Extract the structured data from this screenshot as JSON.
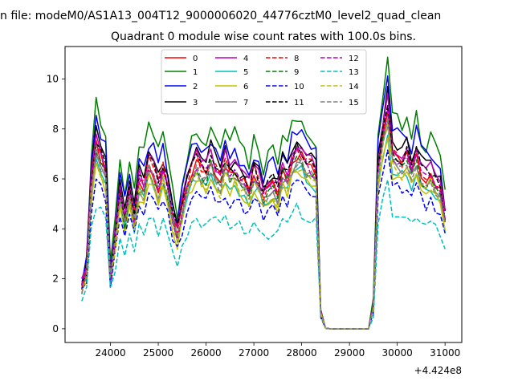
{
  "chart_data": {
    "type": "line",
    "suptitle": "n file: modeM0/AS1A13_004T12_9000006020_44776cztM0_level2_quad_clean",
    "title": "Quadrant 0 module wise count rates with 100.0s bins.",
    "xlabel": "",
    "ylabel": "",
    "x_offset_label": "+4.424e8",
    "x_offset": 442400000,
    "xlim": [
      23050,
      31350
    ],
    "ylim": [
      -0.55,
      11.3
    ],
    "xticks": [
      24000,
      25000,
      26000,
      27000,
      28000,
      29000,
      30000,
      31000
    ],
    "yticks": [
      0,
      2,
      4,
      6,
      8,
      10
    ],
    "legend_loc": "upper center",
    "x": [
      23400,
      23500,
      23600,
      23700,
      23800,
      23900,
      24000,
      24100,
      24200,
      24300,
      24400,
      24500,
      24600,
      24700,
      24800,
      24900,
      25000,
      25100,
      25200,
      25300,
      25400,
      25500,
      25600,
      25700,
      25800,
      25900,
      26000,
      26100,
      26200,
      26300,
      26400,
      26500,
      26600,
      26700,
      26800,
      26900,
      27000,
      27100,
      27200,
      27300,
      27400,
      27500,
      27600,
      27700,
      27800,
      27900,
      28000,
      28100,
      28200,
      28300,
      28400,
      28500,
      28600,
      28700,
      28800,
      28900,
      29000,
      29100,
      29200,
      29300,
      29400,
      29500,
      29600,
      29700,
      29800,
      29900,
      30000,
      30100,
      30200,
      30300,
      30400,
      30500,
      30600,
      30700,
      30800,
      30900,
      31000
    ],
    "base": [
      1.7,
      2.3,
      5.8,
      7.4,
      6.8,
      6.3,
      2.1,
      3.6,
      5.5,
      4.4,
      5.3,
      4.4,
      5.9,
      5.6,
      6.6,
      6.3,
      5.7,
      6.3,
      5.5,
      4.5,
      3.8,
      4.8,
      5.7,
      6.3,
      6.6,
      6.3,
      6.2,
      6.7,
      6.2,
      5.9,
      6.6,
      6.1,
      6.3,
      6.0,
      5.8,
      5.5,
      6.2,
      5.9,
      5.3,
      5.6,
      5.8,
      5.4,
      6.3,
      6.0,
      6.7,
      7.0,
      6.9,
      6.6,
      6.4,
      6.2,
      0.6,
      0.02,
      0,
      0,
      0,
      0,
      0,
      0,
      0,
      0,
      0,
      0.9,
      6.4,
      7.7,
      8.7,
      6.9,
      6.8,
      6.6,
      6.9,
      6.3,
      6.9,
      6.2,
      6.0,
      6.2,
      5.8,
      5.6,
      4.4
    ],
    "series": [
      {
        "name": "0",
        "color": "#ff0000",
        "dashed": false,
        "scale": 1.0,
        "noise": 0.18,
        "seed": 1
      },
      {
        "name": "1",
        "color": "#008000",
        "dashed": false,
        "scale": 1.23,
        "noise": 0.25,
        "seed": 2
      },
      {
        "name": "2",
        "color": "#0000ff",
        "dashed": false,
        "scale": 1.14,
        "noise": 0.22,
        "seed": 3
      },
      {
        "name": "3",
        "color": "#000000",
        "dashed": false,
        "scale": 1.09,
        "noise": 0.2,
        "seed": 4
      },
      {
        "name": "4",
        "color": "#bf00bf",
        "dashed": false,
        "scale": 1.05,
        "noise": 0.2,
        "seed": 5
      },
      {
        "name": "5",
        "color": "#00bfbf",
        "dashed": false,
        "scale": 0.92,
        "noise": 0.18,
        "seed": 6
      },
      {
        "name": "6",
        "color": "#bfbf00",
        "dashed": false,
        "scale": 0.9,
        "noise": 0.18,
        "seed": 7
      },
      {
        "name": "7",
        "color": "#808080",
        "dashed": false,
        "scale": 0.95,
        "noise": 0.18,
        "seed": 8
      },
      {
        "name": "8",
        "color": "#ff0000",
        "dashed": true,
        "scale": 1.02,
        "noise": 0.2,
        "seed": 9
      },
      {
        "name": "9",
        "color": "#008000",
        "dashed": true,
        "scale": 0.97,
        "noise": 0.2,
        "seed": 10
      },
      {
        "name": "10",
        "color": "#0000ff",
        "dashed": true,
        "scale": 0.83,
        "noise": 0.18,
        "seed": 11
      },
      {
        "name": "11",
        "color": "#000000",
        "dashed": true,
        "scale": 1.03,
        "noise": 0.2,
        "seed": 12
      },
      {
        "name": "12",
        "color": "#bf00bf",
        "dashed": true,
        "scale": 1.0,
        "noise": 0.2,
        "seed": 13
      },
      {
        "name": "13",
        "color": "#00bfbf",
        "dashed": true,
        "scale": 0.68,
        "noise": 0.18,
        "seed": 14
      },
      {
        "name": "14",
        "color": "#bfbf00",
        "dashed": true,
        "scale": 0.93,
        "noise": 0.18,
        "seed": 15
      },
      {
        "name": "15",
        "color": "#808080",
        "dashed": true,
        "scale": 0.96,
        "noise": 0.18,
        "seed": 16
      }
    ]
  }
}
